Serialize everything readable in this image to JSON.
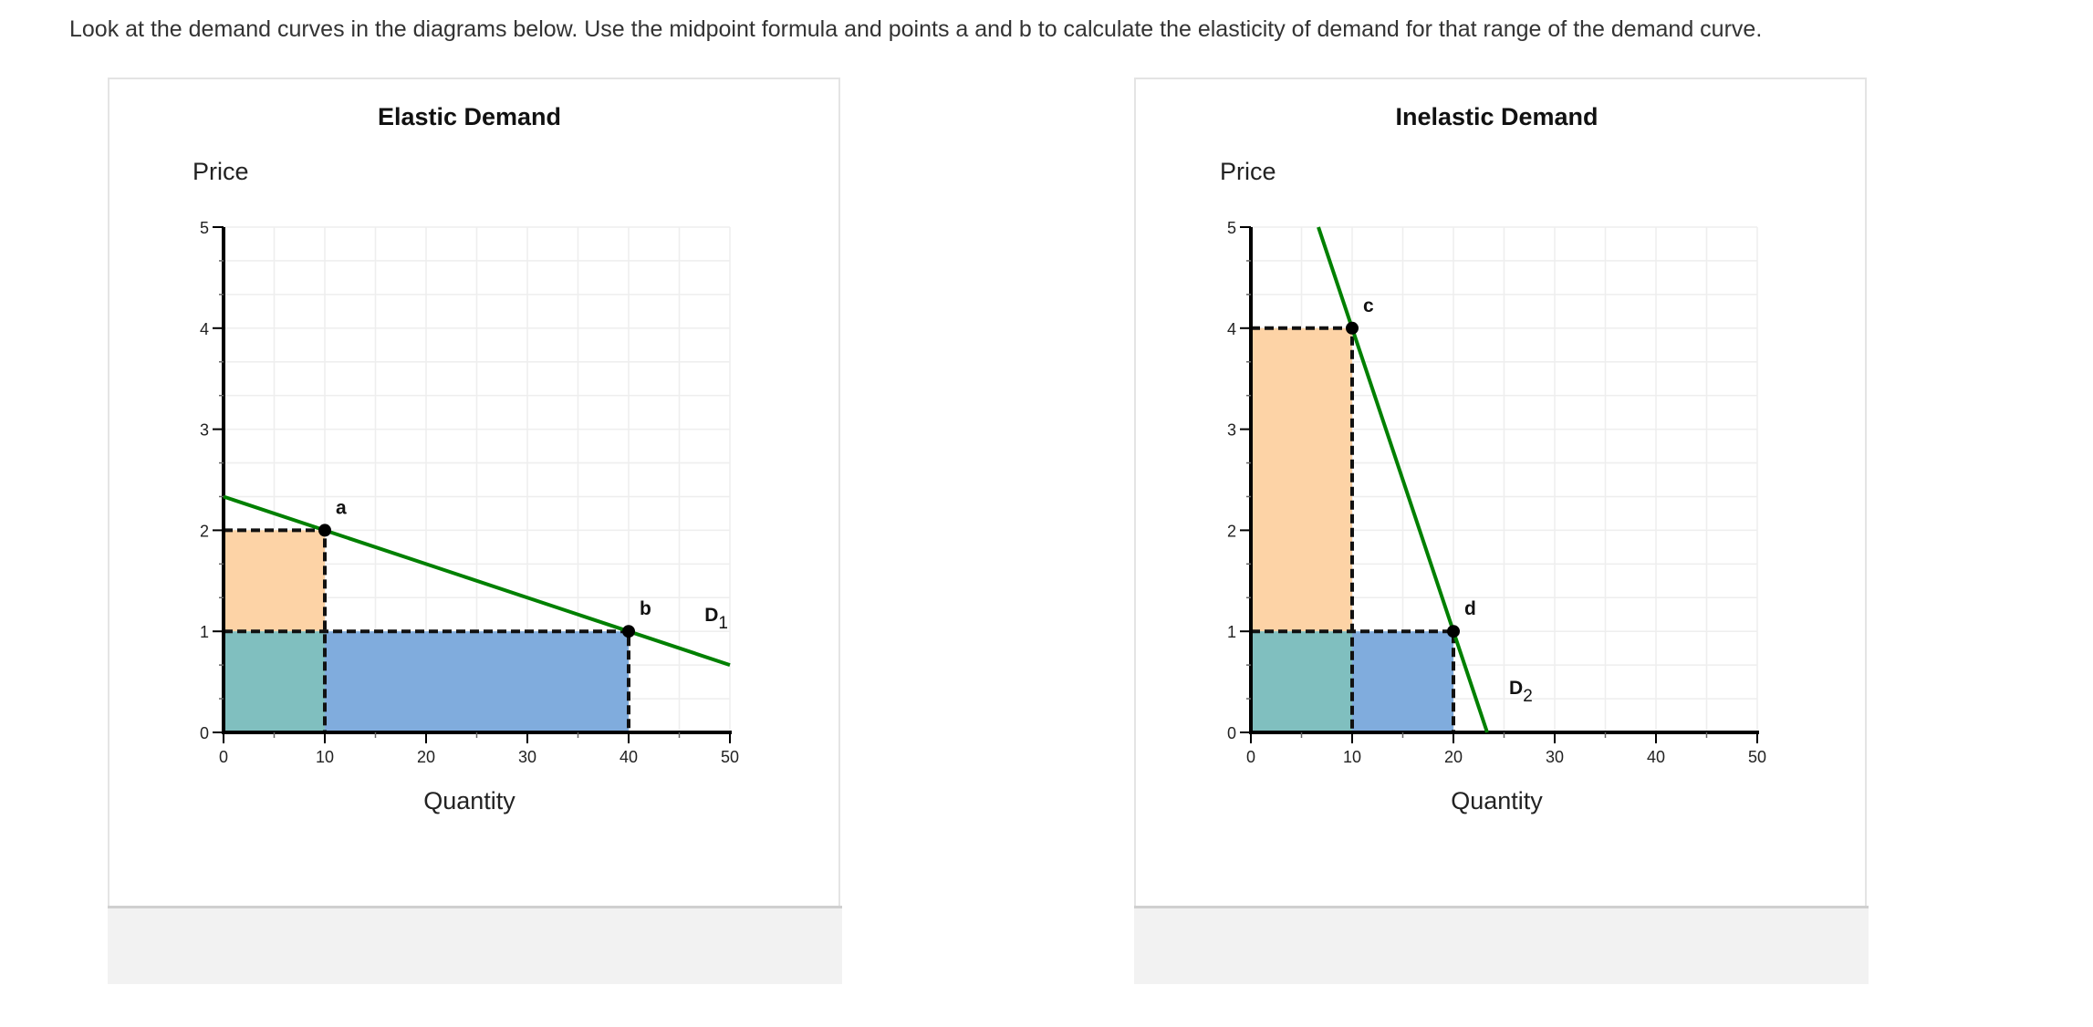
{
  "instruction": "Look at the demand curves in the diagrams below. Use the midpoint formula and points a and b to calculate the elasticity of demand for that range of the demand curve.",
  "colors": {
    "curve": "#008000",
    "orange_area": "#fdd3a6",
    "teal_area": "#80bfbf",
    "blue_area": "#80acdd",
    "grid": "#eeeeee"
  },
  "chart_data": [
    {
      "type": "line",
      "title": "Elastic Demand",
      "ylabel": "Price",
      "xlabel": "Quantity",
      "xlim": [
        0,
        50
      ],
      "ylim": [
        0,
        5
      ],
      "xticks": [
        "0",
        "10",
        "20",
        "30",
        "40",
        "50"
      ],
      "yticks": [
        "0",
        "1",
        "2",
        "3",
        "4",
        "5"
      ],
      "grid": true,
      "curve": {
        "label": "D",
        "subscript": "1",
        "points": [
          [
            0,
            2.333
          ],
          [
            50,
            0.667
          ]
        ]
      },
      "points": [
        {
          "label": "a",
          "x": 10,
          "y": 2
        },
        {
          "label": "b",
          "x": 40,
          "y": 1
        }
      ]
    },
    {
      "type": "line",
      "title": "Inelastic Demand",
      "ylabel": "Price",
      "xlabel": "Quantity",
      "xlim": [
        0,
        50
      ],
      "ylim": [
        0,
        5
      ],
      "xticks": [
        "0",
        "10",
        "20",
        "30",
        "40",
        "50"
      ],
      "yticks": [
        "0",
        "1",
        "2",
        "3",
        "4",
        "5"
      ],
      "grid": true,
      "curve": {
        "label": "D",
        "subscript": "2",
        "points": [
          [
            6.667,
            5
          ],
          [
            23.333,
            0
          ]
        ]
      },
      "points": [
        {
          "label": "c",
          "x": 10,
          "y": 4
        },
        {
          "label": "d",
          "x": 20,
          "y": 1
        }
      ]
    }
  ]
}
